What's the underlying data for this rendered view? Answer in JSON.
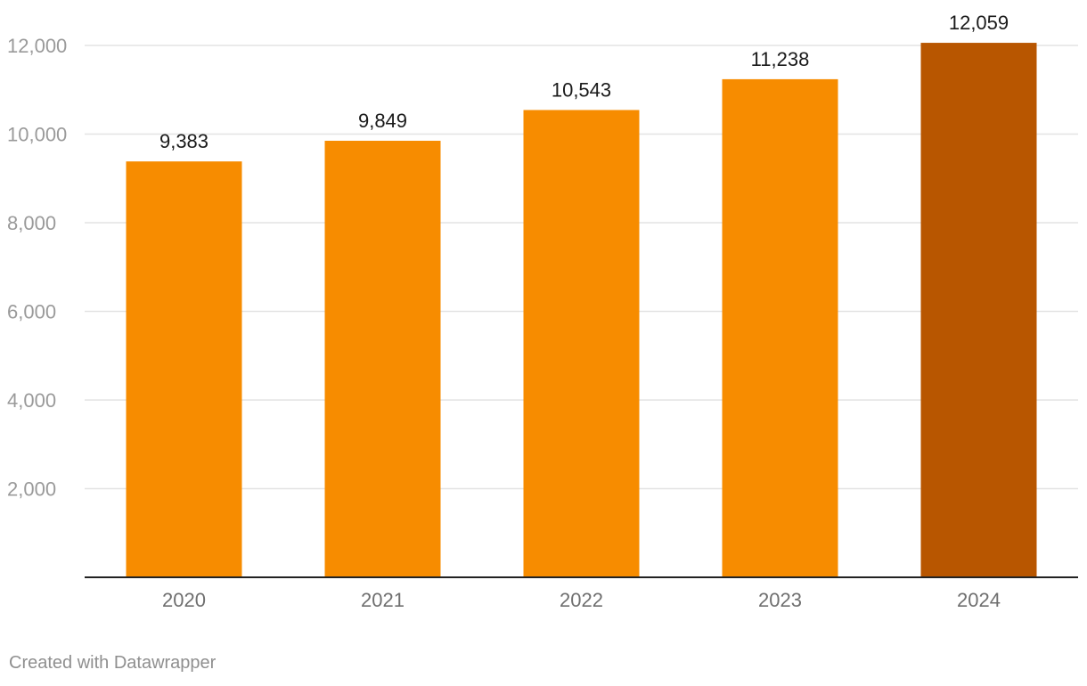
{
  "chart_data": {
    "type": "bar",
    "categories": [
      "2020",
      "2021",
      "2022",
      "2023",
      "2024"
    ],
    "values": [
      9383,
      9849,
      10543,
      11238,
      12059
    ],
    "value_labels": [
      "9,383",
      "9,849",
      "10,543",
      "11,238",
      "12,059"
    ],
    "title": "",
    "xlabel": "",
    "ylabel": "",
    "ylim": [
      0,
      12000
    ],
    "yticks": [
      2000,
      4000,
      6000,
      8000,
      10000,
      12000
    ],
    "ytick_labels": [
      "2,000",
      "4,000",
      "6,000",
      "8,000",
      "10,000",
      "12,000"
    ],
    "grid": true,
    "legend": "none",
    "colors": {
      "bar": "#f78c00",
      "highlight": "#b85600",
      "grid": "#e3e3e3",
      "baseline": "#222222",
      "tick_label": "#9a9a9a",
      "value_label": "#1a1a1a",
      "category_label": "#6f6f6f"
    },
    "highlight_category": "2024"
  },
  "footer": {
    "credit": "Created with Datawrapper"
  }
}
